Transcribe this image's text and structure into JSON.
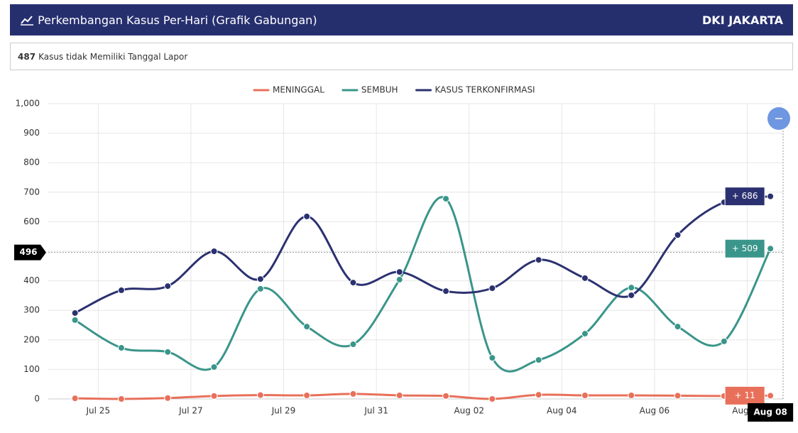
{
  "header": {
    "title": "Perkembangan Kasus Per-Hari (Grafik Gabungan)",
    "region": "DKI JAKARTA"
  },
  "info": {
    "count": 487,
    "text": "Kasus tidak Memiliki Tanggal Lapor"
  },
  "chart_data": {
    "type": "line",
    "categories": [
      null,
      "Jul 25",
      null,
      "Jul 27",
      null,
      "Jul 29",
      null,
      "Jul 31",
      null,
      "Aug 02",
      null,
      "Aug 04",
      null,
      "Aug 06",
      null,
      "Aug 08"
    ],
    "series": [
      {
        "name": "MENINGGAL",
        "color": "#e8705a",
        "values": [
          2,
          0,
          3,
          10,
          13,
          12,
          17,
          12,
          10,
          0,
          14,
          12,
          12,
          11,
          10,
          11
        ],
        "value_labels": [
          null,
          null,
          null,
          null,
          null,
          null,
          null,
          null,
          null,
          null,
          null,
          null,
          null,
          null,
          null,
          "+ 11"
        ]
      },
      {
        "name": "SEMBUH",
        "color": "#3a958a",
        "values": [
          267,
          173,
          159,
          108,
          373,
          245,
          185,
          404,
          678,
          139,
          132,
          221,
          377,
          245,
          195,
          509
        ],
        "value_labels": [
          null,
          null,
          null,
          null,
          null,
          null,
          null,
          null,
          null,
          null,
          null,
          null,
          null,
          null,
          null,
          "+ 509"
        ]
      },
      {
        "name": "KASUS TERKONFIRMASI",
        "color": "#2b3170",
        "values": [
          291,
          368,
          382,
          500,
          406,
          618,
          394,
          430,
          365,
          375,
          471,
          409,
          351,
          555,
          666,
          686
        ],
        "value_labels": [
          null,
          null,
          null,
          null,
          null,
          null,
          null,
          null,
          null,
          null,
          null,
          null,
          null,
          null,
          null,
          "+ 686"
        ]
      }
    ],
    "ylim": [
      0,
      1000
    ],
    "yticks": [
      0,
      100,
      200,
      300,
      400,
      500,
      600,
      700,
      800,
      900,
      {
        "value": 1000,
        "label": "1,000"
      }
    ],
    "crosshair_y": 496,
    "grid": true,
    "legend": "top"
  }
}
